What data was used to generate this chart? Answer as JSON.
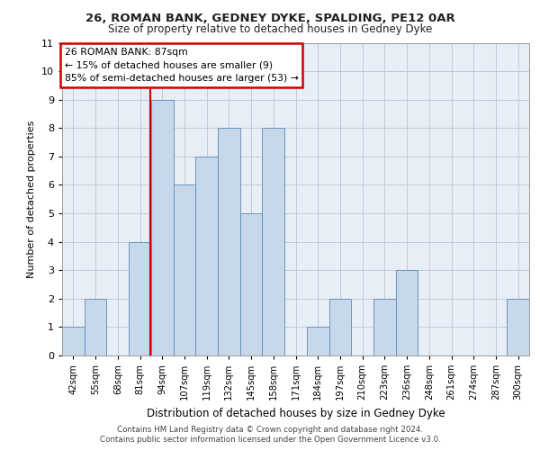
{
  "title1": "26, ROMAN BANK, GEDNEY DYKE, SPALDING, PE12 0AR",
  "title2": "Size of property relative to detached houses in Gedney Dyke",
  "xlabel": "Distribution of detached houses by size in Gedney Dyke",
  "ylabel": "Number of detached properties",
  "categories": [
    "42sqm",
    "55sqm",
    "68sqm",
    "81sqm",
    "94sqm",
    "107sqm",
    "119sqm",
    "132sqm",
    "145sqm",
    "158sqm",
    "171sqm",
    "184sqm",
    "197sqm",
    "210sqm",
    "223sqm",
    "236sqm",
    "248sqm",
    "261sqm",
    "274sqm",
    "287sqm",
    "300sqm"
  ],
  "values": [
    1,
    2,
    0,
    4,
    9,
    6,
    7,
    8,
    5,
    8,
    0,
    1,
    2,
    0,
    2,
    3,
    0,
    0,
    0,
    0,
    2
  ],
  "bar_color": "#c8d8eb",
  "bar_edge_color": "#5a8ab8",
  "subject_line_color": "#cc0000",
  "annotation_text": "26 ROMAN BANK: 87sqm\n← 15% of detached houses are smaller (9)\n85% of semi-detached houses are larger (53) →",
  "annotation_box_color": "#ffffff",
  "annotation_box_edge": "#cc0000",
  "footnote1": "Contains HM Land Registry data © Crown copyright and database right 2024.",
  "footnote2": "Contains public sector information licensed under the Open Government Licence v3.0.",
  "ylim": [
    0,
    11
  ],
  "grid_color": "#c0cad8",
  "plot_bg_color": "#e8eef5"
}
